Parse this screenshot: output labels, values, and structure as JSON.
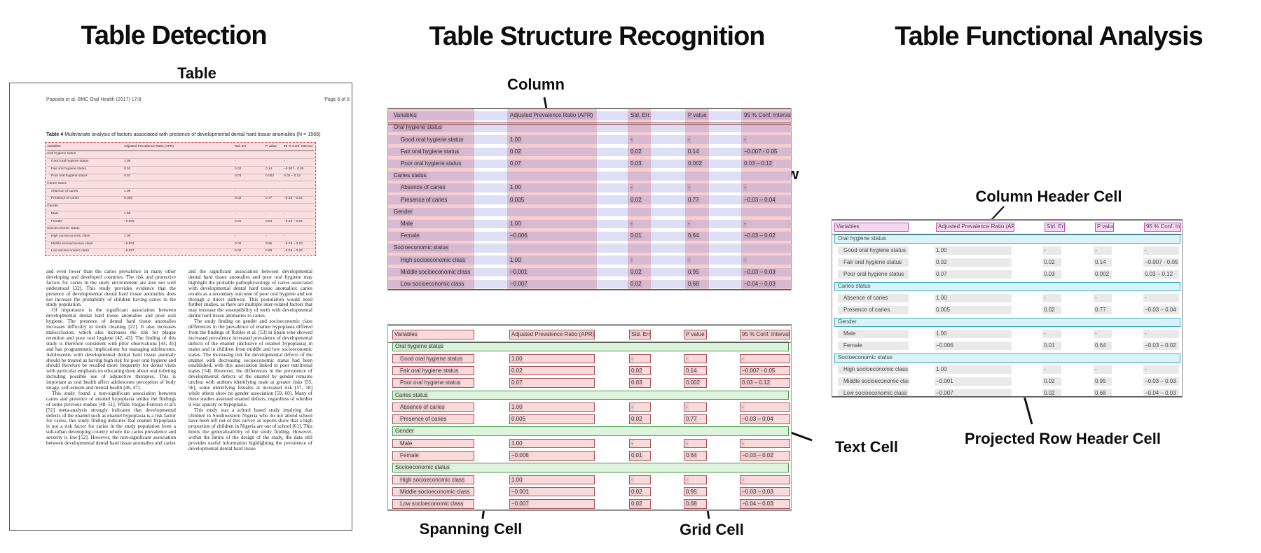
{
  "panels": {
    "detection": {
      "title": "Table Detection",
      "annotation_table": "Table"
    },
    "structure": {
      "title": "Table Structure Recognition",
      "annotation_column": "Column",
      "annotation_row": "Row",
      "annotation_spanning_cell": "Spanning Cell",
      "annotation_grid_cell": "Grid Cell",
      "annotation_text_cell": "Text Cell"
    },
    "functional": {
      "title": "Table Functional Analysis",
      "annotation_column_header": "Column Header Cell",
      "annotation_projected_row_header": "Projected Row Header Cell"
    }
  },
  "document": {
    "header_left": "Popoola et al. BMC Oral Health  (2017) 17:8",
    "header_right": "Page 6 of 8",
    "caption_label": "Table 4",
    "caption_text": " Multivariate analysis of factors associated with presence of developmental dental hard tissue anomalies (N = 1565)",
    "body_left": [
      "and even lower than the caries prevalence in many other developing and developed countries. The risk and protective factors for caries in the study environment are also not well understood [32]. This study provides evidence that the presence of developmental dental hard tissue anomalies does not increase the probability of children having caries in the study population.",
      "Of importance is the significant association between developmental dental hard tissue anomalies and poor oral hygiene. The presence of dental hard tissue anomalies increases difficulty in tooth cleaning [22]. It also increases malocclusion, which also increases the risk for plaque retention and poor oral hygiene [42, 43]. The finding of this study is therefore consistent with prior observations [44, 45] and has programmatic implications for managing adolescents. Adolescents with developmental dental hard tissue anomaly should be treated as having high risk for poor oral hygiene and should therefore be recalled more frequently for dental visits with particular emphasis on educating them about oral toileting including possible use of adjunctive therapies. This is important as oral health affect adolescents perception of body image, self-esteem and mental health [46, 47].",
      "This study found a non-significant association between caries and presence of enamel hypoplasia unlike the findings of some previous studies [48–51]. While Vargas-Ferreira et al's [51] meta-analysis strongly indicates that developmental defects of the enamel such as enamel hypoplasia is a risk factor for caries, this study finding indicates that enamel hypoplasia is not a risk factor for caries in the study population from a sub-urban developing country where the caries prevalence and severity is low [52]. However, the non-significant association between developmental dental hard tissue anomalies and caries"
    ],
    "body_right": [
      "and the significant association between developmental dental hard tissue anomalies and poor oral hygiene may highlight the probable pathophysiology of caries associated with developmental dental hard tissue anomalies: caries results as a secondary outcome of poor oral hygiene and not through a direct pathway. This postulation would need further studies, as there are multiple inter-related factors that may increase the susceptibility of teeth with developmental dental hard tissue anomalies to caries.",
      "The study finding on gender and socioeconomic class differences in the prevalence of enamel hypoplasia differed from the findings of Robles et al. [53] in Spain who showed increased prevalence increased prevalence of developmental defects of the enamel (inclusive of enamel hypoplasia) in males and in children from middle and low socioeconomic status. The increasing risk for developmental defects of the enamel with decreasing socioeconomic status had been established, with this association linked to poor nutritional status [54]. However, the differences in the prevalence of developmental defects of the enamel by gender remains unclear with authors identifying male at greater risks [55, 56], some identifying females at increased risk [57, 58] while others show no gender association [59, 60]. Many of these studies assessed enamel defects, regardless of whether it was opacity or hypoplasia.",
      "This study was a school based study implying that children in Southwestern Nigeria who do not attend school have been left out of this survey as reports show that a high proportion of children in Nigeria are out of school [61]. This limits the generalizability of the study finding. However, within the limits of the design of the study, the data still provides useful information highlighting the prevalence of developmental dental hard tissue"
    ]
  },
  "table_data": {
    "columns": [
      "Variables",
      "Adjusted Prevalence Ratio (APR)",
      "Std. Err.",
      "P value",
      "95 % Conf. Interval"
    ],
    "rows": [
      {
        "type": "section",
        "cells": [
          "Oral hygiene status",
          "",
          "",
          "",
          ""
        ]
      },
      {
        "type": "data",
        "cells": [
          "Good oral hygiene status",
          "1.00",
          "-",
          "-",
          "-"
        ]
      },
      {
        "type": "data",
        "cells": [
          "Fair oral hygiene status",
          "0.02",
          "0.02",
          "0.14",
          "−0.007 - 0.05"
        ]
      },
      {
        "type": "data",
        "cells": [
          "Poor oral hygiene status",
          "0.07",
          "0.03",
          "0.002",
          "0.03 – 0.12"
        ]
      },
      {
        "type": "section",
        "cells": [
          "Caries status",
          "",
          "",
          "",
          ""
        ]
      },
      {
        "type": "data",
        "cells": [
          "Absence of caries",
          "1.00",
          "-",
          "-",
          "-"
        ]
      },
      {
        "type": "data",
        "cells": [
          "Presence of caries",
          "0.005",
          "0.02",
          "0.77",
          "−0.03 – 0.04"
        ]
      },
      {
        "type": "section",
        "cells": [
          "Gender",
          "",
          "",
          "",
          ""
        ]
      },
      {
        "type": "data",
        "cells": [
          "Male",
          "1.00",
          "-",
          "-",
          "-"
        ]
      },
      {
        "type": "data",
        "cells": [
          "Female",
          "−0.006",
          "0.01",
          "0.64",
          "−0.03 – 0.02"
        ]
      },
      {
        "type": "section",
        "cells": [
          "Socioeconomic status",
          "",
          "",
          "",
          ""
        ]
      },
      {
        "type": "data",
        "cells": [
          "High socioeconomic class",
          "1.00",
          "-",
          "-",
          "-"
        ]
      },
      {
        "type": "data",
        "cells": [
          "Middle socioeconomic class",
          "−0.001",
          "0.02",
          "0.95",
          "−0.03 – 0.03"
        ]
      },
      {
        "type": "data",
        "cells": [
          "Low socioeconomic class",
          "−0.007",
          "0.02",
          "0.68",
          "−0.04 – 0.03"
        ]
      }
    ]
  },
  "colors": {
    "detection_fill": "rgba(238,106,106,0.22)",
    "detection_border": "#d85050",
    "column_band": "rgba(224,93,99,0.30)",
    "row_band": "rgba(126,126,214,0.26)",
    "text_cell_border": "#a85058",
    "text_cell_fill": "#f9dadb",
    "spanning_cell_border": "#3f9f3f",
    "spanning_cell_fill": "#def3dd",
    "column_header_cell_border": "#c44cbc",
    "column_header_cell_fill": "#f7d8f4",
    "projected_row_header_border": "#3aabc2",
    "projected_row_header_fill": "#d9f3f7",
    "grid_cell_fill": "#e9e9e9"
  }
}
